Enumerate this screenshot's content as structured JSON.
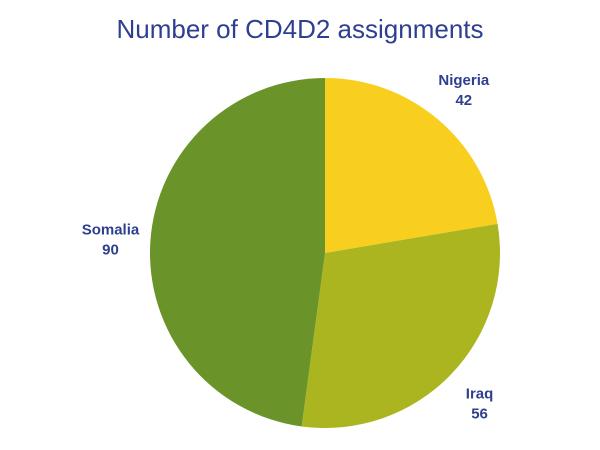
{
  "chart_data": {
    "type": "pie",
    "title": "Number of CD4D2 assignments",
    "slices": [
      {
        "label": "Nigeria",
        "value": 42,
        "color": "#f9cf1f"
      },
      {
        "label": "Iraq",
        "value": 56,
        "color": "#abb51f"
      },
      {
        "label": "Somalia",
        "value": 90,
        "color": "#6a932a"
      }
    ],
    "start_angle_deg": 0,
    "direction": "clockwise",
    "label_color": "#2f3f8f",
    "title_color": "#2f3f8f",
    "label_placement": "outside",
    "legend": false
  }
}
